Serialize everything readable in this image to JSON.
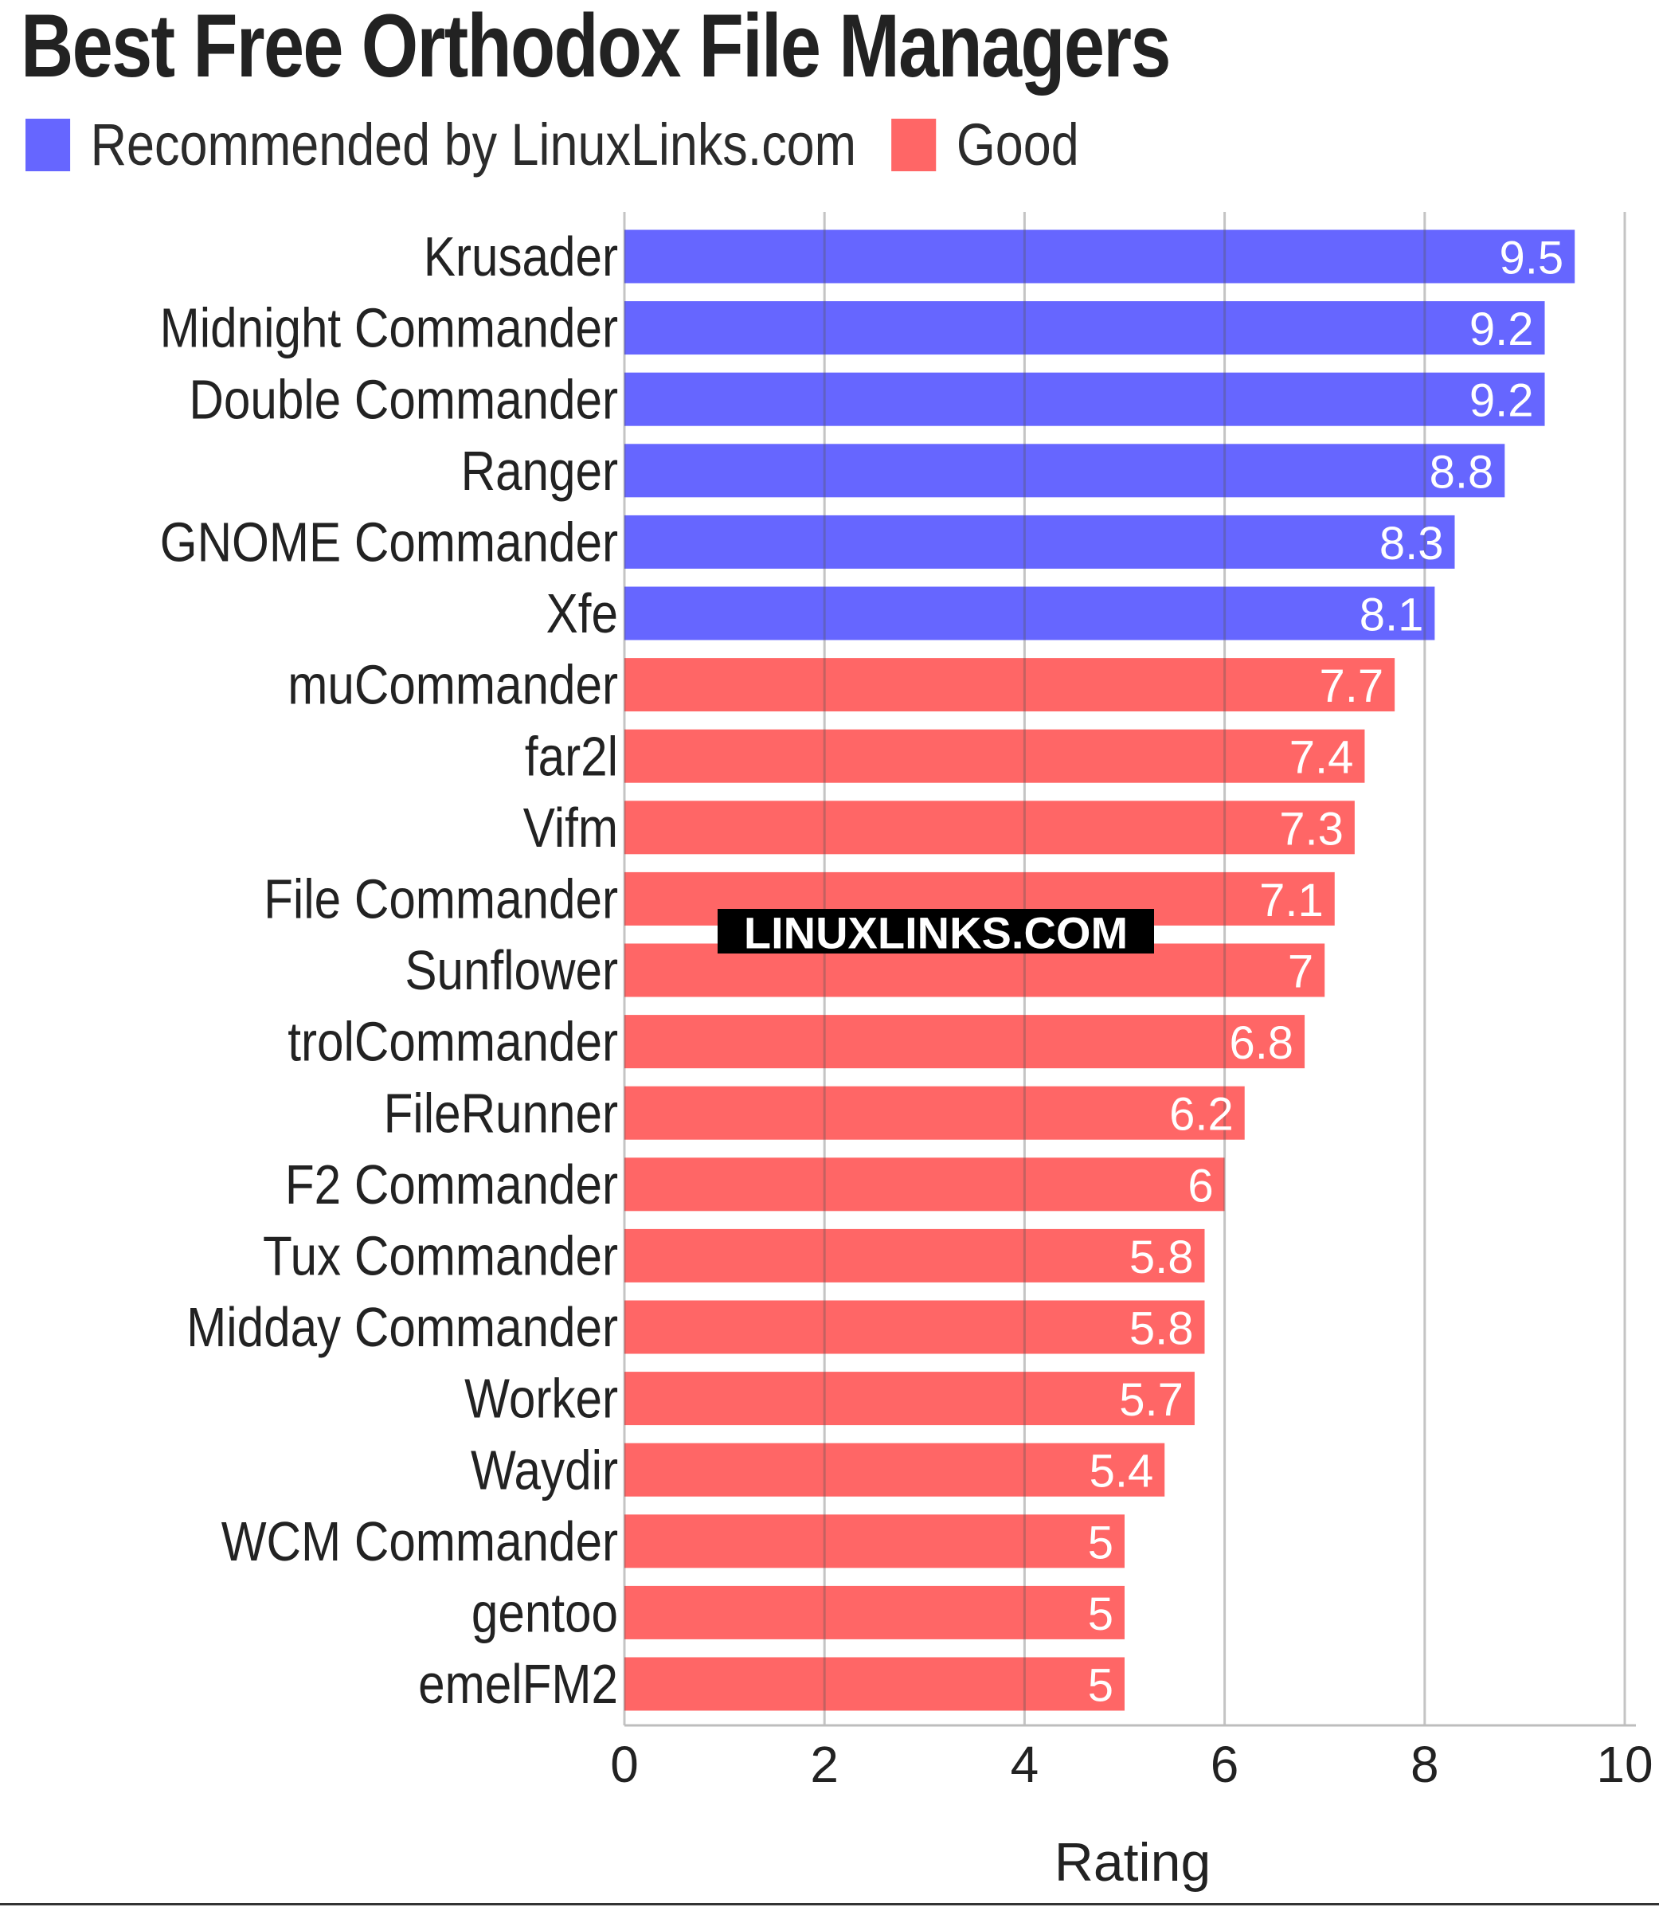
{
  "chart_data": {
    "type": "bar",
    "orientation": "horizontal",
    "title": "Best Free Orthodox File Managers",
    "xlabel": "Rating",
    "ylabel": "",
    "xlim": [
      0,
      10
    ],
    "xticks": [
      "0",
      "2",
      "4",
      "6",
      "8",
      "10"
    ],
    "grid": "vertical",
    "legend_position": "top-left",
    "watermark": "LINUXLINKS.COM",
    "legend": [
      {
        "label": "Recommended by LinuxLinks.com",
        "color": "#6666ff"
      },
      {
        "label": "Good",
        "color": "#ff6666"
      }
    ],
    "categories": [
      "Krusader",
      "Midnight Commander",
      "Double Commander",
      "Ranger",
      "GNOME Commander",
      "Xfe",
      "muCommander",
      "far2l",
      "Vifm",
      "File Commander",
      "Sunflower",
      "trolCommander",
      "FileRunner",
      "F2 Commander",
      "Tux Commander",
      "Midday Commander",
      "Worker",
      "Waydir",
      "WCM Commander",
      "gentoo",
      "emelFM2"
    ],
    "values": [
      9.5,
      9.2,
      9.2,
      8.8,
      8.3,
      8.1,
      7.7,
      7.4,
      7.3,
      7.1,
      7,
      6.8,
      6.2,
      6,
      5.8,
      5.8,
      5.7,
      5.4,
      5,
      5,
      5
    ],
    "value_labels": [
      "9.5",
      "9.2",
      "9.2",
      "8.8",
      "8.3",
      "8.1",
      "7.7",
      "7.4",
      "7.3",
      "7.1",
      "7",
      "6.8",
      "6.2",
      "6",
      "5.8",
      "5.8",
      "5.7",
      "5.4",
      "5",
      "5",
      "5"
    ],
    "groups": [
      "Recommended by LinuxLinks.com",
      "Recommended by LinuxLinks.com",
      "Recommended by LinuxLinks.com",
      "Recommended by LinuxLinks.com",
      "Recommended by LinuxLinks.com",
      "Recommended by LinuxLinks.com",
      "Good",
      "Good",
      "Good",
      "Good",
      "Good",
      "Good",
      "Good",
      "Good",
      "Good",
      "Good",
      "Good",
      "Good",
      "Good",
      "Good",
      "Good"
    ]
  },
  "colors": {
    "recommended": "#6666ff",
    "good": "#ff6666",
    "grid": "#bdbdbd",
    "text": "#222222"
  }
}
